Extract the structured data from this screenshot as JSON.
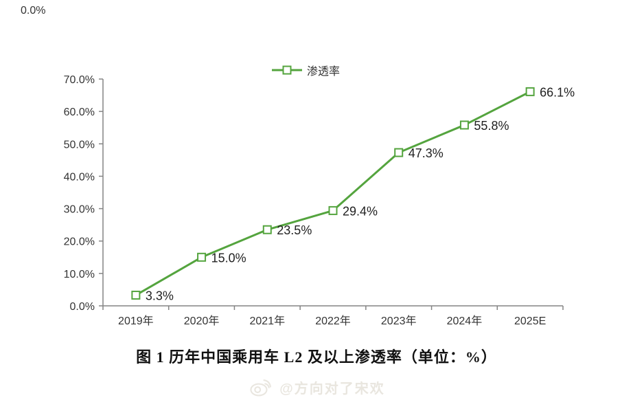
{
  "page": {
    "background": "#ffffff"
  },
  "stray_label": "0.0%",
  "legend": {
    "series_label": "渗透率",
    "marker": "open-square-on-line"
  },
  "chart_data": {
    "type": "line",
    "title": "",
    "categories": [
      "2019年",
      "2020年",
      "2021年",
      "2022年",
      "2023年",
      "2024年",
      "2025E"
    ],
    "series": [
      {
        "name": "渗透率",
        "values": [
          3.3,
          15.0,
          23.5,
          29.4,
          47.3,
          55.8,
          66.1
        ]
      }
    ],
    "data_labels": [
      "3.3%",
      "15.0%",
      "23.5%",
      "29.4%",
      "47.3%",
      "55.8%",
      "66.1%"
    ],
    "xlabel": "",
    "ylabel": "",
    "ylim": [
      0,
      70
    ],
    "y_tick_step": 10,
    "y_tick_labels": [
      "0.0%",
      "10.0%",
      "20.0%",
      "30.0%",
      "40.0%",
      "50.0%",
      "60.0%",
      "70.0%"
    ],
    "grid": "off",
    "legend_position": "top-center",
    "line_color": "#54a43e",
    "marker": "open-square",
    "marker_fill": "#ffffff",
    "axis_color": "#848484",
    "label_color": "#333333"
  },
  "caption": "图 1  历年中国乘用车 L2 及以上渗透率（单位：%）",
  "watermark": {
    "icon": "weibo-icon",
    "text": "@方向对了宋欢",
    "color": "#e9e6df"
  }
}
